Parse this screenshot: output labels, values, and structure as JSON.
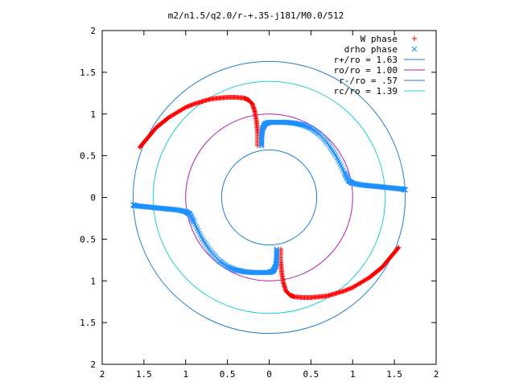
{
  "chart_data": {
    "type": "scatter",
    "title": "m2/n1.5/q2.0/r-+.35-j181/M0.0/512",
    "xlim": [
      -2,
      2
    ],
    "ylim": [
      -2,
      2
    ],
    "x_ticks": [
      "2",
      "1.5",
      "1",
      "0.5",
      "0",
      "0.5",
      "1",
      "1.5",
      "2"
    ],
    "y_ticks": [
      "2",
      "1.5",
      "1",
      "0.5",
      "0",
      "0.5",
      "1",
      "1.5",
      "2"
    ],
    "grid": false,
    "legend_position": "top-right",
    "legend": [
      {
        "label": "W phase",
        "marker": "+",
        "color": "#ff0000"
      },
      {
        "label": "drho phase",
        "marker": "x",
        "color": "#1e90ff"
      },
      {
        "label": "r+/ro = 1.63",
        "color": "#1e7fd0"
      },
      {
        "label": "ro/ro = 1.00",
        "color": "#b020b0"
      },
      {
        "label": "r-/ro = .57",
        "color": "#1e7fd0"
      },
      {
        "label": "rc/ro = 1.39",
        "color": "#20d0d0"
      }
    ],
    "circles": [
      {
        "name": "r+/ro = 1.63",
        "radius": 1.63,
        "color": "#1e7fd0"
      },
      {
        "name": "ro/ro = 1.00",
        "radius": 1.0,
        "color": "#b020b0"
      },
      {
        "name": "r-/ro = .57",
        "radius": 0.57,
        "color": "#1e7fd0"
      },
      {
        "name": "rc/ro = 1.39",
        "radius": 1.39,
        "color": "#20d0d0"
      }
    ],
    "series": [
      {
        "name": "W phase",
        "marker": "+",
        "color": "#ff0000",
        "points": [
          [
            -1.55,
            0.6
          ],
          [
            -1.5,
            0.66
          ],
          [
            -1.45,
            0.72
          ],
          [
            -1.4,
            0.78
          ],
          [
            -1.35,
            0.84
          ],
          [
            -1.3,
            0.88
          ],
          [
            -1.25,
            0.92
          ],
          [
            -1.2,
            0.96
          ],
          [
            -1.1,
            1.02
          ],
          [
            -1.0,
            1.08
          ],
          [
            -0.9,
            1.12
          ],
          [
            -0.8,
            1.15
          ],
          [
            -0.7,
            1.18
          ],
          [
            -0.6,
            1.19
          ],
          [
            -0.5,
            1.2
          ],
          [
            -0.4,
            1.2
          ],
          [
            -0.3,
            1.19
          ],
          [
            -0.25,
            1.17
          ],
          [
            -0.2,
            1.12
          ],
          [
            -0.17,
            1.02
          ],
          [
            -0.15,
            0.9
          ],
          [
            -0.14,
            0.78
          ],
          [
            -0.14,
            0.62
          ],
          [
            1.55,
            -0.6
          ],
          [
            1.5,
            -0.66
          ],
          [
            1.45,
            -0.72
          ],
          [
            1.4,
            -0.78
          ],
          [
            1.35,
            -0.84
          ],
          [
            1.3,
            -0.88
          ],
          [
            1.25,
            -0.92
          ],
          [
            1.2,
            -0.96
          ],
          [
            1.1,
            -1.02
          ],
          [
            1.0,
            -1.08
          ],
          [
            0.9,
            -1.12
          ],
          [
            0.8,
            -1.15
          ],
          [
            0.7,
            -1.18
          ],
          [
            0.6,
            -1.19
          ],
          [
            0.5,
            -1.2
          ],
          [
            0.4,
            -1.2
          ],
          [
            0.3,
            -1.19
          ],
          [
            0.25,
            -1.17
          ],
          [
            0.2,
            -1.12
          ],
          [
            0.17,
            -1.02
          ],
          [
            0.15,
            -0.9
          ],
          [
            0.14,
            -0.78
          ],
          [
            0.14,
            -0.62
          ]
        ]
      },
      {
        "name": "drho phase",
        "marker": "x",
        "color": "#1e90ff",
        "points": [
          [
            -0.09,
            0.62
          ],
          [
            -0.09,
            0.72
          ],
          [
            -0.08,
            0.82
          ],
          [
            -0.05,
            0.88
          ],
          [
            0.0,
            0.9
          ],
          [
            0.1,
            0.9
          ],
          [
            0.2,
            0.9
          ],
          [
            0.3,
            0.89
          ],
          [
            0.4,
            0.87
          ],
          [
            0.5,
            0.83
          ],
          [
            0.6,
            0.76
          ],
          [
            0.7,
            0.65
          ],
          [
            0.8,
            0.5
          ],
          [
            0.9,
            0.3
          ],
          [
            0.95,
            0.2
          ],
          [
            1.0,
            0.17
          ],
          [
            1.1,
            0.15
          ],
          [
            1.2,
            0.14
          ],
          [
            1.3,
            0.13
          ],
          [
            1.4,
            0.12
          ],
          [
            1.5,
            0.11
          ],
          [
            1.6,
            0.1
          ],
          [
            1.63,
            0.09
          ],
          [
            0.09,
            -0.62
          ],
          [
            0.09,
            -0.72
          ],
          [
            0.08,
            -0.82
          ],
          [
            0.05,
            -0.88
          ],
          [
            0.0,
            -0.9
          ],
          [
            -0.1,
            -0.9
          ],
          [
            -0.2,
            -0.9
          ],
          [
            -0.3,
            -0.89
          ],
          [
            -0.4,
            -0.87
          ],
          [
            -0.5,
            -0.83
          ],
          [
            -0.6,
            -0.76
          ],
          [
            -0.7,
            -0.65
          ],
          [
            -0.8,
            -0.5
          ],
          [
            -0.9,
            -0.3
          ],
          [
            -0.95,
            -0.2
          ],
          [
            -1.0,
            -0.17
          ],
          [
            -1.1,
            -0.15
          ],
          [
            -1.2,
            -0.14
          ],
          [
            -1.3,
            -0.13
          ],
          [
            -1.4,
            -0.12
          ],
          [
            -1.5,
            -0.11
          ],
          [
            -1.6,
            -0.1
          ],
          [
            -1.63,
            -0.09
          ]
        ]
      }
    ]
  }
}
